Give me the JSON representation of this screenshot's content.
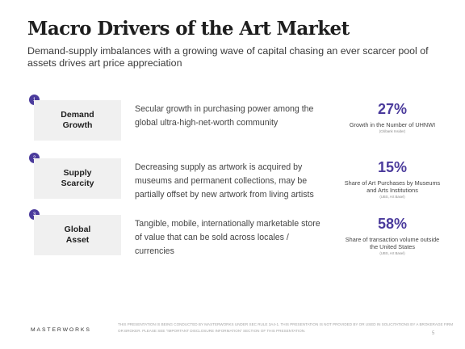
{
  "slide": {
    "title": "Macro Drivers of the Art Market",
    "subtitle": "Demand-supply imbalances with a growing wave of capital chasing an ever scarcer pool of assets drives art price appreciation"
  },
  "drivers": [
    {
      "number": "1",
      "name": "Demand\nGrowth",
      "description": "Secular growth in purchasing power among the global ultra-high-net-worth community",
      "stat_value": "27%",
      "stat_label": "Growth in the Number of UHNWI",
      "stat_source": "(Citi­bank Insider)"
    },
    {
      "number": "2",
      "name": "Supply\nScarcity",
      "description": "Decreasing supply as artwork is acquired by museums and permanent collections, may be partially offset by new artwork from living artists",
      "stat_value": "15%",
      "stat_label": "Share of Art Purchases by Museums and Arts Institutions",
      "stat_source": "(UBS, Art Basel)"
    },
    {
      "number": "3",
      "name": "Global\nAsset",
      "description": "Tangible, mobile, internationally marketable store of value that can be sold across locales / currencies",
      "stat_value": "58%",
      "stat_label": "Share of transaction volume outside the United States",
      "stat_source": "(UBS, Art Basel)"
    }
  ],
  "footer": {
    "logo": "MASTERWORKS",
    "disclaimer": "This presentation is being conducted by Masterworks under SEC Rule 3a4-1. This presentation is not provided by or used in solicitations by a brokerage firm or broker. Please see \"Important Disclosure Information\" section of this presentation.",
    "page_number": "5"
  },
  "colors": {
    "accent": "#4b3b9c",
    "box_background": "#f0f0f0",
    "title": "#1e1e1e"
  }
}
